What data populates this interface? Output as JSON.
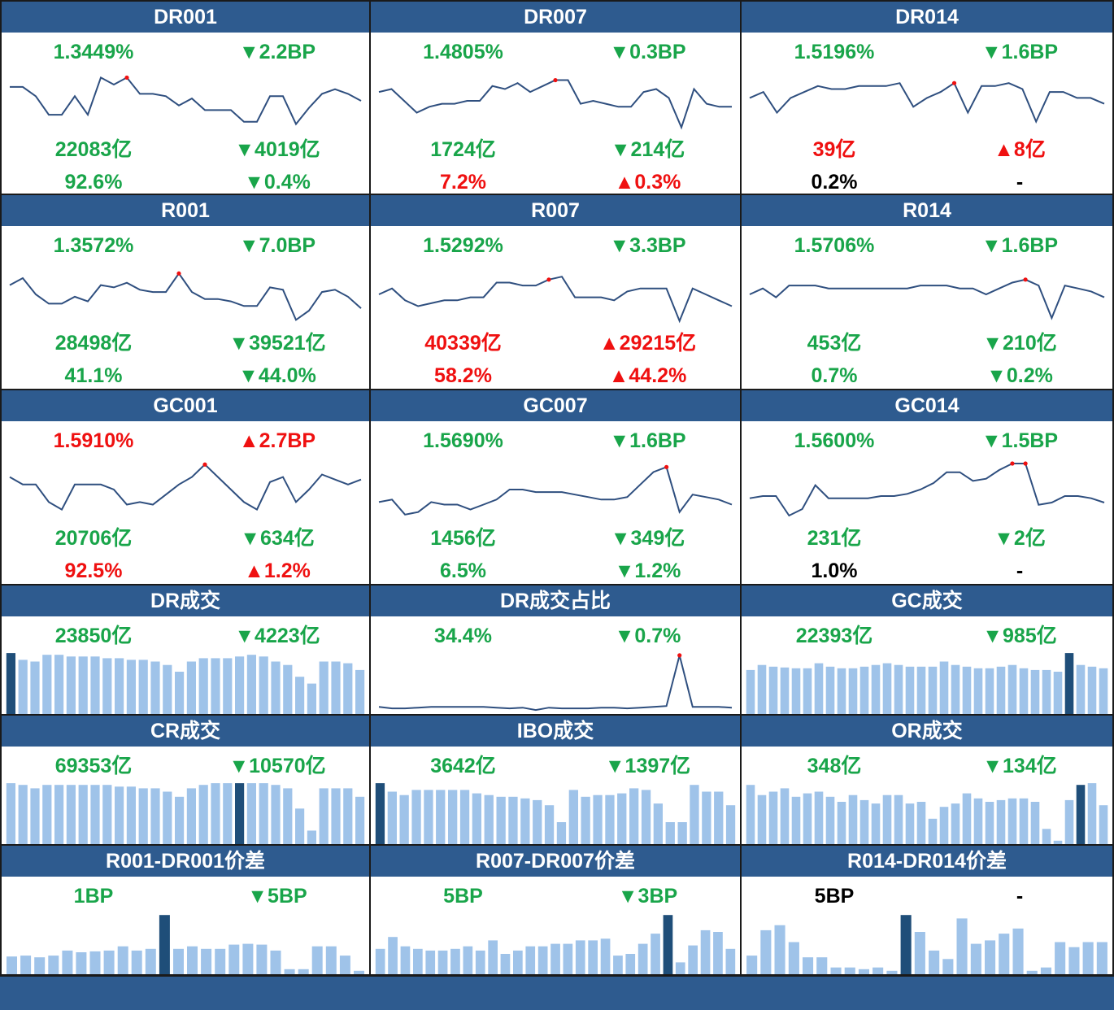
{
  "colors": {
    "header": "#2e5b8f",
    "up": "#ef1010",
    "down": "#19a54a",
    "flat": "#000000",
    "line": "#2f4f7f",
    "marker": "#ef1010",
    "bar": "#9fc3e9",
    "bar_highlight": "#1f4e79"
  },
  "panels": [
    {
      "id": "dr001",
      "kind": "line",
      "title": "DR001",
      "rate": {
        "text": "1.3449%",
        "dir": "down"
      },
      "rate_chg": {
        "text": "▼2.2BP",
        "dir": "down"
      },
      "volume": {
        "text": "22083亿",
        "dir": "down"
      },
      "volume_chg": {
        "text": "▼4019亿",
        "dir": "down"
      },
      "share": {
        "text": "92.6%",
        "dir": "down"
      },
      "share_chg": {
        "text": "▼0.4%",
        "dir": "down"
      },
      "chart_data": {
        "type": "line",
        "values": [
          1.38,
          1.38,
          1.36,
          1.32,
          1.32,
          1.36,
          1.32,
          1.4,
          1.385,
          1.4,
          1.365,
          1.365,
          1.36,
          1.34,
          1.355,
          1.33,
          1.33,
          1.33,
          1.305,
          1.305,
          1.36,
          1.36,
          1.3,
          1.335,
          1.365,
          1.375,
          1.365,
          1.35
        ],
        "marker_index": 9,
        "ylim": [
          1.28,
          1.42
        ]
      }
    },
    {
      "id": "dr007",
      "kind": "line",
      "title": "DR007",
      "rate": {
        "text": "1.4805%",
        "dir": "down"
      },
      "rate_chg": {
        "text": "▼0.3BP",
        "dir": "down"
      },
      "volume": {
        "text": "1724亿",
        "dir": "down"
      },
      "volume_chg": {
        "text": "▼214亿",
        "dir": "down"
      },
      "share": {
        "text": "7.2%",
        "dir": "up"
      },
      "share_chg": {
        "text": "▲0.3%",
        "dir": "up"
      },
      "chart_data": {
        "type": "line",
        "values": [
          1.48,
          1.485,
          1.465,
          1.445,
          1.455,
          1.46,
          1.46,
          1.465,
          1.465,
          1.49,
          1.485,
          1.495,
          1.48,
          1.49,
          1.5,
          1.5,
          1.46,
          1.465,
          1.46,
          1.455,
          1.455,
          1.48,
          1.485,
          1.47,
          1.42,
          1.485,
          1.46,
          1.455,
          1.455
        ],
        "marker_index": 14,
        "ylim": [
          1.41,
          1.52
        ]
      }
    },
    {
      "id": "dr014",
      "kind": "line",
      "title": "DR014",
      "rate": {
        "text": "1.5196%",
        "dir": "down"
      },
      "rate_chg": {
        "text": "▼1.6BP",
        "dir": "down"
      },
      "volume": {
        "text": "39亿",
        "dir": "up"
      },
      "volume_chg": {
        "text": "▲8亿",
        "dir": "up"
      },
      "share": {
        "text": "0.2%",
        "dir": "flat"
      },
      "share_chg": {
        "text": "-",
        "dir": "flat"
      },
      "chart_data": {
        "type": "line",
        "values": [
          1.53,
          1.54,
          1.505,
          1.53,
          1.54,
          1.55,
          1.545,
          1.545,
          1.55,
          1.55,
          1.55,
          1.555,
          1.515,
          1.53,
          1.54,
          1.555,
          1.505,
          1.55,
          1.55,
          1.555,
          1.545,
          1.49,
          1.54,
          1.54,
          1.53,
          1.53,
          1.52
        ],
        "marker_index": 15,
        "ylim": [
          1.47,
          1.58
        ]
      }
    },
    {
      "id": "r001",
      "kind": "line",
      "title": "R001",
      "rate": {
        "text": "1.3572%",
        "dir": "down"
      },
      "rate_chg": {
        "text": "▼7.0BP",
        "dir": "down"
      },
      "volume": {
        "text": "28498亿",
        "dir": "down"
      },
      "volume_chg": {
        "text": "▼39521亿",
        "dir": "down"
      },
      "share": {
        "text": "41.1%",
        "dir": "down"
      },
      "share_chg": {
        "text": "▼44.0%",
        "dir": "down"
      },
      "chart_data": {
        "type": "line",
        "values": [
          1.42,
          1.435,
          1.4,
          1.38,
          1.38,
          1.395,
          1.385,
          1.42,
          1.415,
          1.425,
          1.41,
          1.405,
          1.405,
          1.445,
          1.405,
          1.39,
          1.39,
          1.385,
          1.375,
          1.375,
          1.415,
          1.41,
          1.345,
          1.365,
          1.405,
          1.41,
          1.395,
          1.37
        ],
        "marker_index": 13,
        "ylim": [
          1.33,
          1.47
        ]
      }
    },
    {
      "id": "r007",
      "kind": "line",
      "title": "R007",
      "rate": {
        "text": "1.5292%",
        "dir": "down"
      },
      "rate_chg": {
        "text": "▼3.3BP",
        "dir": "down"
      },
      "volume": {
        "text": "40339亿",
        "dir": "up"
      },
      "volume_chg": {
        "text": "▲29215亿",
        "dir": "up"
      },
      "share": {
        "text": "58.2%",
        "dir": "up"
      },
      "share_chg": {
        "text": "▲44.2%",
        "dir": "up"
      },
      "chart_data": {
        "type": "line",
        "values": [
          1.555,
          1.565,
          1.545,
          1.535,
          1.54,
          1.545,
          1.545,
          1.55,
          1.55,
          1.575,
          1.575,
          1.57,
          1.57,
          1.58,
          1.585,
          1.55,
          1.55,
          1.55,
          1.545,
          1.56,
          1.565,
          1.565,
          1.565,
          1.51,
          1.565,
          1.555,
          1.545,
          1.535
        ],
        "marker_index": 13,
        "ylim": [
          1.5,
          1.61
        ]
      }
    },
    {
      "id": "r014",
      "kind": "line",
      "title": "R014",
      "rate": {
        "text": "1.5706%",
        "dir": "down"
      },
      "rate_chg": {
        "text": "▼1.6BP",
        "dir": "down"
      },
      "volume": {
        "text": "453亿",
        "dir": "down"
      },
      "volume_chg": {
        "text": "▼210亿",
        "dir": "down"
      },
      "share": {
        "text": "0.7%",
        "dir": "down"
      },
      "share_chg": {
        "text": "▼0.2%",
        "dir": "down"
      },
      "chart_data": {
        "type": "line",
        "values": [
          1.565,
          1.575,
          1.56,
          1.58,
          1.58,
          1.58,
          1.575,
          1.575,
          1.575,
          1.575,
          1.575,
          1.575,
          1.575,
          1.58,
          1.58,
          1.58,
          1.575,
          1.575,
          1.565,
          1.575,
          1.585,
          1.59,
          1.58,
          1.525,
          1.58,
          1.575,
          1.57,
          1.56
        ],
        "marker_index": 21,
        "ylim": [
          1.51,
          1.62
        ]
      }
    },
    {
      "id": "gc001",
      "kind": "line",
      "title": "GC001",
      "rate": {
        "text": "1.5910%",
        "dir": "up"
      },
      "rate_chg": {
        "text": "▲2.7BP",
        "dir": "up"
      },
      "volume": {
        "text": "20706亿",
        "dir": "down"
      },
      "volume_chg": {
        "text": "▼634亿",
        "dir": "down"
      },
      "share": {
        "text": "92.5%",
        "dir": "up"
      },
      "share_chg": {
        "text": "▲1.2%",
        "dir": "up"
      },
      "chart_data": {
        "type": "line",
        "values": [
          1.66,
          1.645,
          1.645,
          1.61,
          1.595,
          1.645,
          1.645,
          1.645,
          1.635,
          1.605,
          1.61,
          1.605,
          1.625,
          1.645,
          1.66,
          1.685,
          1.66,
          1.635,
          1.61,
          1.595,
          1.65,
          1.66,
          1.61,
          1.635,
          1.665,
          1.655,
          1.645,
          1.655
        ],
        "marker_index": 15,
        "ylim": [
          1.57,
          1.7
        ]
      }
    },
    {
      "id": "gc007",
      "kind": "line",
      "title": "GC007",
      "rate": {
        "text": "1.5690%",
        "dir": "down"
      },
      "rate_chg": {
        "text": "▼1.6BP",
        "dir": "down"
      },
      "volume": {
        "text": "1456亿",
        "dir": "down"
      },
      "volume_chg": {
        "text": "▼349亿",
        "dir": "down"
      },
      "share": {
        "text": "6.5%",
        "dir": "down"
      },
      "share_chg": {
        "text": "▼1.2%",
        "dir": "down"
      },
      "chart_data": {
        "type": "line",
        "values": [
          1.59,
          1.595,
          1.565,
          1.57,
          1.59,
          1.585,
          1.585,
          1.575,
          1.585,
          1.595,
          1.615,
          1.615,
          1.61,
          1.61,
          1.61,
          1.605,
          1.6,
          1.595,
          1.595,
          1.6,
          1.625,
          1.65,
          1.66,
          1.57,
          1.605,
          1.6,
          1.595,
          1.585
        ],
        "marker_index": 22,
        "ylim": [
          1.55,
          1.68
        ]
      }
    },
    {
      "id": "gc014",
      "kind": "line",
      "title": "GC014",
      "rate": {
        "text": "1.5600%",
        "dir": "down"
      },
      "rate_chg": {
        "text": "▼1.5BP",
        "dir": "down"
      },
      "volume": {
        "text": "231亿",
        "dir": "down"
      },
      "volume_chg": {
        "text": "▼2亿",
        "dir": "down"
      },
      "share": {
        "text": "1.0%",
        "dir": "flat"
      },
      "share_chg": {
        "text": "-",
        "dir": "flat"
      },
      "chart_data": {
        "type": "line",
        "values": [
          1.595,
          1.6,
          1.6,
          1.555,
          1.57,
          1.625,
          1.595,
          1.595,
          1.595,
          1.595,
          1.6,
          1.6,
          1.605,
          1.615,
          1.63,
          1.655,
          1.655,
          1.635,
          1.64,
          1.66,
          1.675,
          1.675,
          1.58,
          1.585,
          1.6,
          1.6,
          1.595,
          1.585
        ],
        "marker_index": [
          20,
          21
        ],
        "ylim": [
          1.54,
          1.69
        ]
      }
    },
    {
      "id": "dr-vol",
      "kind": "bar",
      "title": "DR成交",
      "value": {
        "text": "23850亿",
        "dir": "down"
      },
      "change": {
        "text": "▼4223亿",
        "dir": "down"
      },
      "chart_data": {
        "type": "bar",
        "values": [
          72,
          64,
          62,
          70,
          70,
          68,
          68,
          68,
          66,
          66,
          64,
          64,
          62,
          58,
          50,
          62,
          66,
          66,
          66,
          68,
          70,
          68,
          62,
          58,
          44,
          36,
          62,
          62,
          60,
          52
        ],
        "highlight_index": 0,
        "ylim": [
          0,
          75
        ]
      }
    },
    {
      "id": "dr-share",
      "kind": "line",
      "title": "DR成交占比",
      "value": {
        "text": "34.4%",
        "dir": "down"
      },
      "change": {
        "text": "▼0.7%",
        "dir": "down"
      },
      "chart_data": {
        "type": "line",
        "values": [
          7,
          5,
          5,
          6,
          7,
          7,
          7,
          7,
          7,
          6,
          5,
          6,
          3,
          6,
          5,
          5,
          5,
          6,
          6,
          5,
          6,
          7,
          8,
          72,
          7,
          7,
          7,
          6
        ],
        "marker_index": 23,
        "ylim": [
          0,
          76
        ]
      }
    },
    {
      "id": "gc-vol",
      "kind": "bar",
      "title": "GC成交",
      "value": {
        "text": "22393亿",
        "dir": "down"
      },
      "change": {
        "text": "▼985亿",
        "dir": "down"
      },
      "chart_data": {
        "type": "bar",
        "values": [
          52,
          58,
          56,
          55,
          54,
          54,
          60,
          56,
          54,
          54,
          56,
          58,
          60,
          58,
          56,
          56,
          56,
          62,
          58,
          56,
          54,
          54,
          56,
          58,
          54,
          52,
          52,
          50,
          72,
          58,
          56,
          54
        ],
        "highlight_index": 28,
        "ylim": [
          0,
          75
        ]
      }
    },
    {
      "id": "cr-vol",
      "kind": "bar",
      "title": "CR成交",
      "value": {
        "text": "69353亿",
        "dir": "down"
      },
      "change": {
        "text": "▼10570亿",
        "dir": "down"
      },
      "chart_data": {
        "type": "bar",
        "values": [
          72,
          70,
          66,
          70,
          70,
          70,
          70,
          70,
          70,
          68,
          68,
          66,
          66,
          62,
          56,
          66,
          70,
          72,
          72,
          72,
          72,
          72,
          70,
          66,
          42,
          16,
          66,
          66,
          66,
          56
        ],
        "highlight_index": 19,
        "ylim": [
          0,
          75
        ]
      }
    },
    {
      "id": "ibo-vol",
      "kind": "bar",
      "title": "IBO成交",
      "value": {
        "text": "3642亿",
        "dir": "down"
      },
      "change": {
        "text": "▼1397亿",
        "dir": "down"
      },
      "chart_data": {
        "type": "bar",
        "values": [
          72,
          62,
          58,
          64,
          64,
          64,
          64,
          64,
          60,
          58,
          56,
          56,
          54,
          52,
          46,
          26,
          64,
          56,
          58,
          58,
          60,
          66,
          64,
          48,
          26,
          26,
          70,
          62,
          62,
          46
        ],
        "highlight_index": 0,
        "ylim": [
          0,
          75
        ]
      }
    },
    {
      "id": "or-vol",
      "kind": "bar",
      "title": "OR成交",
      "value": {
        "text": "348亿",
        "dir": "down"
      },
      "change": {
        "text": "▼134亿",
        "dir": "down"
      },
      "chart_data": {
        "type": "bar",
        "values": [
          70,
          58,
          62,
          66,
          56,
          60,
          62,
          56,
          50,
          58,
          52,
          48,
          58,
          58,
          48,
          50,
          30,
          44,
          48,
          60,
          54,
          50,
          52,
          54,
          54,
          50,
          18,
          4,
          52,
          70,
          72,
          46
        ],
        "highlight_index": 29,
        "ylim": [
          0,
          75
        ]
      }
    },
    {
      "id": "spread-1",
      "kind": "bar",
      "title": "R001-DR001价差",
      "value": {
        "text": "1BP",
        "dir": "down"
      },
      "change": {
        "text": "▼5BP",
        "dir": "down"
      },
      "chart_data": {
        "type": "bar",
        "values": [
          21,
          22,
          20,
          22,
          28,
          26,
          27,
          28,
          33,
          28,
          30,
          70,
          30,
          33,
          30,
          30,
          35,
          36,
          35,
          28,
          6,
          6,
          33,
          33,
          22,
          4
        ],
        "highlight_index": 11,
        "ylim": [
          0,
          75
        ]
      }
    },
    {
      "id": "spread-7",
      "kind": "bar",
      "title": "R007-DR007价差",
      "value": {
        "text": "5BP",
        "dir": "down"
      },
      "change": {
        "text": "▼3BP",
        "dir": "down"
      },
      "chart_data": {
        "type": "bar",
        "values": [
          30,
          44,
          33,
          30,
          28,
          28,
          30,
          33,
          28,
          40,
          24,
          28,
          33,
          33,
          36,
          36,
          40,
          40,
          42,
          22,
          24,
          36,
          48,
          70,
          14,
          34,
          52,
          50,
          30
        ],
        "highlight_index": 23,
        "ylim": [
          0,
          75
        ]
      }
    },
    {
      "id": "spread-14",
      "kind": "bar",
      "title": "R014-DR014价差",
      "value": {
        "text": "5BP",
        "dir": "flat"
      },
      "change": {
        "text": "-",
        "dir": "flat"
      },
      "chart_data": {
        "type": "bar",
        "values": [
          22,
          52,
          58,
          38,
          20,
          20,
          8,
          8,
          6,
          8,
          4,
          70,
          50,
          28,
          18,
          66,
          36,
          40,
          48,
          54,
          4,
          8,
          38,
          32,
          38,
          38
        ],
        "highlight_index": 11,
        "ylim": [
          0,
          75
        ]
      }
    }
  ]
}
